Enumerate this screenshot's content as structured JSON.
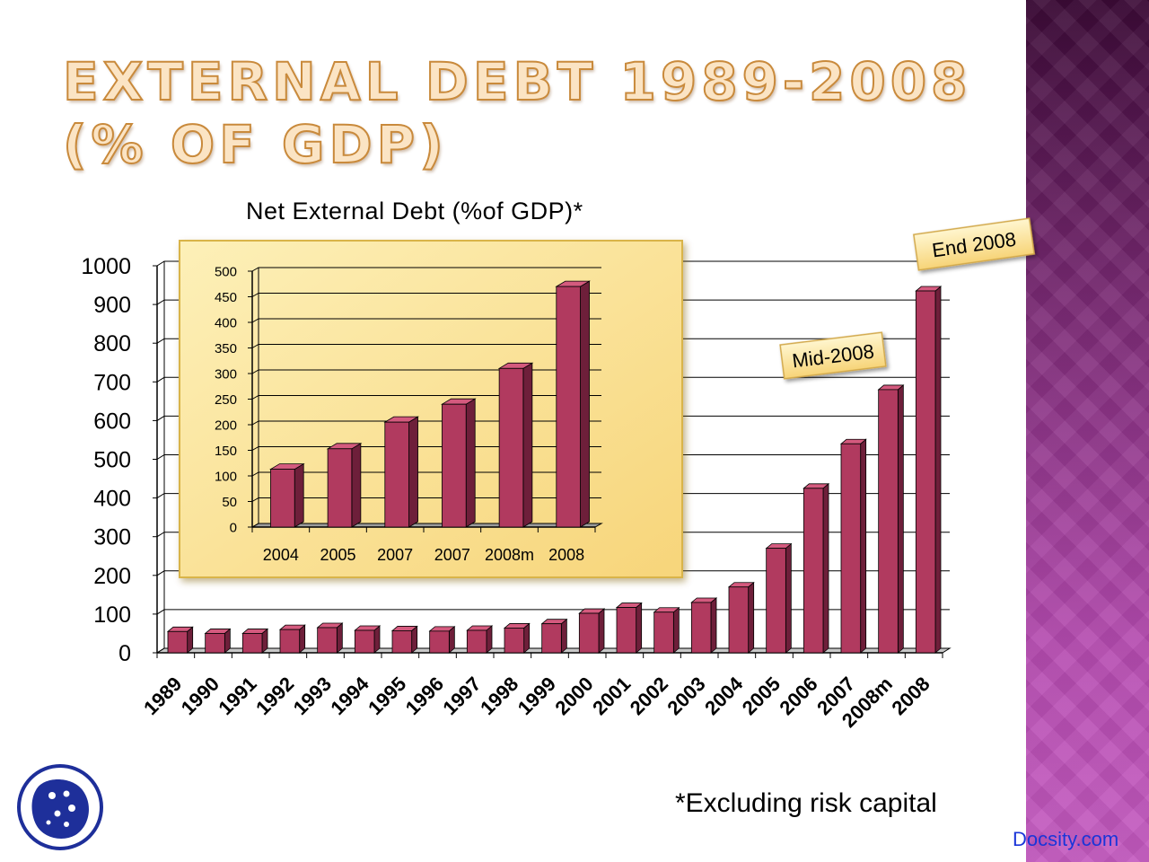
{
  "slide": {
    "title_line1": "EXTERNAL DEBT 1989-2008",
    "title_line2": "(% OF GDP)",
    "footnote": "*Excluding risk capital",
    "watermark": "Docsity.com"
  },
  "colors": {
    "bar_face": "#b13a5f",
    "bar_side": "#6e1f3a",
    "bar_top": "#d45a7e",
    "inset_bg": "#fbe39a",
    "sidebar": "#8a3284"
  },
  "chart_data": [
    {
      "type": "bar",
      "title": "Net External Debt (%of GDP)*",
      "categories": [
        "1989",
        "1990",
        "1991",
        "1992",
        "1993",
        "1994",
        "1995",
        "1996",
        "1997",
        "1998",
        "1999",
        "2000",
        "2001",
        "2002",
        "2003",
        "2004",
        "2005",
        "2006",
        "2007",
        "2008m",
        "2008"
      ],
      "values": [
        55,
        50,
        50,
        60,
        65,
        58,
        57,
        56,
        58,
        64,
        75,
        102,
        117,
        105,
        130,
        170,
        270,
        425,
        540,
        680,
        935
      ],
      "ylim": [
        0,
        1000
      ],
      "yticks": [
        0,
        100,
        200,
        300,
        400,
        500,
        600,
        700,
        800,
        900,
        1000
      ],
      "grid": true,
      "annotations": [
        {
          "text": "Mid-2008",
          "category": "2008m"
        },
        {
          "text": "End 2008",
          "category": "2008"
        }
      ]
    },
    {
      "type": "bar",
      "title": "",
      "categories": [
        "2004",
        "2005",
        "2007",
        "2007",
        "2008m",
        "2008"
      ],
      "values": [
        113,
        153,
        205,
        240,
        310,
        470
      ],
      "ylim": [
        0,
        500
      ],
      "yticks": [
        0,
        50,
        100,
        150,
        200,
        250,
        300,
        350,
        400,
        450,
        500
      ],
      "grid": true
    }
  ]
}
